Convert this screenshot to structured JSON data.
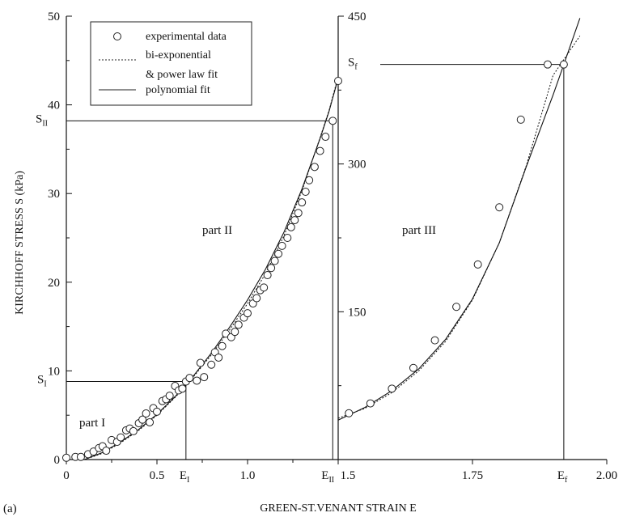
{
  "panel_label": "(a)",
  "chart_data": [
    {
      "type": "scatter",
      "panel": "left",
      "xlabel": "GREEN-ST.VENANT STRAIN E",
      "ylabel": "KIRCHHOFF STRESS S (kPa)",
      "xlim": [
        0,
        1.5
      ],
      "ylim": [
        0,
        50
      ],
      "x_ticks": [
        "0",
        "0.5",
        "1.0",
        "1.5"
      ],
      "x_tick_values": [
        0,
        0.5,
        1.0,
        1.5
      ],
      "y_ticks": [
        "0",
        "10",
        "20",
        "30",
        "40",
        "50"
      ],
      "y_tick_values": [
        0,
        10,
        20,
        30,
        40,
        50
      ],
      "grid": false,
      "legend": {
        "placement": "top-left",
        "entries": [
          {
            "marker": "circle",
            "label": "experimental data"
          },
          {
            "marker": "dashed-line",
            "label": "bi-exponential"
          },
          {
            "marker": "none",
            "label": "& power law fit"
          },
          {
            "marker": "solid-line",
            "label": "polynomial fit"
          }
        ]
      },
      "annotations": {
        "part1": "part I",
        "part2": "part II",
        "s1": "S",
        "s1_sub": "I",
        "s2": "S",
        "s2_sub": "II",
        "e1": "E",
        "e1_sub": "I",
        "e2": "E",
        "e2_sub": "II"
      },
      "reference_lines": {
        "E_I": 0.66,
        "S_I": 8.8,
        "E_II": 1.47,
        "S_II": 38.2
      },
      "series": [
        {
          "style": "circles",
          "x": [
            0.0,
            0.05,
            0.08,
            0.12,
            0.15,
            0.18,
            0.2,
            0.22,
            0.25,
            0.28,
            0.3,
            0.33,
            0.35,
            0.37,
            0.4,
            0.42,
            0.44,
            0.46,
            0.48,
            0.5,
            0.53,
            0.55,
            0.57,
            0.6,
            0.62,
            0.64,
            0.66,
            0.68,
            0.72,
            0.74,
            0.76,
            0.8,
            0.82,
            0.84,
            0.86,
            0.88,
            0.91,
            0.93,
            0.95,
            0.98,
            1.0,
            1.03,
            1.05,
            1.07,
            1.09,
            1.11,
            1.13,
            1.15,
            1.17,
            1.19,
            1.22,
            1.24,
            1.26,
            1.28,
            1.3,
            1.32,
            1.34,
            1.37,
            1.4,
            1.43,
            1.47,
            1.5
          ],
          "y": [
            0.2,
            0.3,
            0.3,
            0.6,
            0.9,
            1.3,
            1.5,
            1.0,
            2.2,
            2.0,
            2.5,
            3.3,
            3.5,
            3.2,
            4.1,
            4.5,
            5.2,
            4.2,
            5.8,
            5.4,
            6.6,
            6.8,
            7.2,
            8.3,
            7.8,
            8.0,
            8.8,
            9.2,
            8.9,
            10.9,
            9.3,
            10.7,
            12.1,
            11.5,
            12.8,
            14.2,
            13.8,
            14.4,
            15.2,
            16.0,
            16.5,
            17.6,
            18.2,
            19.1,
            19.4,
            20.8,
            21.6,
            22.4,
            23.2,
            24.1,
            25.0,
            26.2,
            27.0,
            27.8,
            29.0,
            30.2,
            31.5,
            33.0,
            34.8,
            36.4,
            38.2,
            42.7
          ]
        },
        {
          "style": "dashed",
          "x": [
            0.1,
            0.2,
            0.3,
            0.4,
            0.5,
            0.6,
            0.7,
            0.8,
            0.9,
            1.0,
            1.1,
            1.2,
            1.3,
            1.4,
            1.45,
            1.5
          ],
          "y": [
            0.0,
            0.7,
            1.9,
            3.3,
            5.0,
            7.0,
            9.3,
            11.8,
            14.6,
            17.6,
            21.0,
            25.2,
            30.3,
            36.3,
            39.4,
            43.2
          ]
        },
        {
          "style": "solid",
          "x": [
            0.1,
            0.2,
            0.3,
            0.4,
            0.5,
            0.6,
            0.7,
            0.8,
            0.9,
            1.0,
            1.1,
            1.2,
            1.3,
            1.4,
            1.45,
            1.5
          ],
          "y": [
            0.0,
            0.8,
            2.0,
            3.4,
            5.1,
            7.1,
            9.4,
            12.0,
            14.9,
            18.0,
            21.5,
            25.6,
            30.5,
            36.2,
            39.3,
            43.0
          ]
        }
      ]
    },
    {
      "type": "scatter",
      "panel": "right",
      "xlim": [
        1.5,
        2.0
      ],
      "ylim": [
        0,
        450
      ],
      "x_ticks": [
        "1.5",
        "1.75",
        "2.00"
      ],
      "x_tick_values": [
        1.5,
        1.75,
        2.0
      ],
      "y_ticks": [
        "150",
        "300",
        "450"
      ],
      "y_tick_values": [
        150,
        300,
        450
      ],
      "grid": false,
      "annotations": {
        "part3": "part III",
        "sf": "S",
        "sf_sub": "f",
        "ef": "E",
        "ef_sub": "f"
      },
      "reference_lines": {
        "E_f": 1.92,
        "S_f": 401
      },
      "series": [
        {
          "style": "circles",
          "x": [
            1.52,
            1.56,
            1.6,
            1.64,
            1.68,
            1.72,
            1.76,
            1.8,
            1.84,
            1.89,
            1.92
          ],
          "y": [
            47,
            57,
            72,
            93,
            121,
            155,
            198,
            256,
            345,
            401,
            401
          ],
          "y_note": "readout"
        },
        {
          "style": "dashed",
          "x": [
            1.5,
            1.55,
            1.6,
            1.65,
            1.7,
            1.75,
            1.8,
            1.85,
            1.9,
            1.95
          ],
          "y": [
            42,
            52,
            68,
            90,
            120,
            162,
            220,
            298,
            390,
            430
          ]
        },
        {
          "style": "solid",
          "x": [
            1.5,
            1.55,
            1.6,
            1.65,
            1.7,
            1.75,
            1.8,
            1.85,
            1.9,
            1.92,
            1.95
          ],
          "y": [
            40,
            53,
            70,
            92,
            122,
            163,
            220,
            297,
            370,
            401,
            448
          ]
        }
      ]
    }
  ]
}
